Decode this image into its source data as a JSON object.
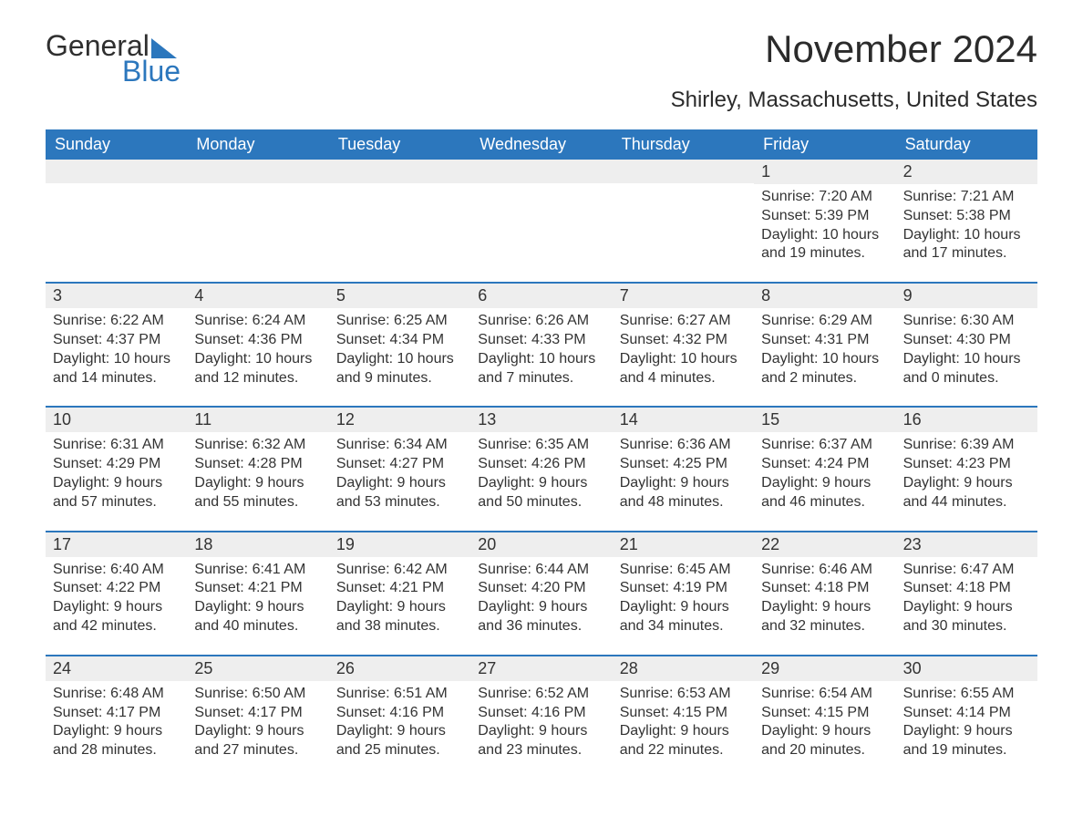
{
  "logo": {
    "line1": "General",
    "line2": "Blue",
    "triangle_color": "#2c77bd"
  },
  "title": "November 2024",
  "location": "Shirley, Massachusetts, United States",
  "colors": {
    "header_bg": "#2c77bd",
    "header_text": "#ffffff",
    "daynum_bg": "#eeeeee",
    "text": "#333333",
    "rule": "#2c77bd",
    "page_bg": "#ffffff"
  },
  "typography": {
    "title_fontsize": 42,
    "location_fontsize": 24,
    "dayheader_fontsize": 18,
    "daynum_fontsize": 18,
    "body_fontsize": 16,
    "logo_fontsize": 32
  },
  "layout": {
    "columns": 7,
    "rows": 5,
    "first_day_column": 5
  },
  "day_headers": [
    "Sunday",
    "Monday",
    "Tuesday",
    "Wednesday",
    "Thursday",
    "Friday",
    "Saturday"
  ],
  "days": [
    {
      "n": 1,
      "sunrise": "7:20 AM",
      "sunset": "5:39 PM",
      "daylight": "10 hours and 19 minutes."
    },
    {
      "n": 2,
      "sunrise": "7:21 AM",
      "sunset": "5:38 PM",
      "daylight": "10 hours and 17 minutes."
    },
    {
      "n": 3,
      "sunrise": "6:22 AM",
      "sunset": "4:37 PM",
      "daylight": "10 hours and 14 minutes."
    },
    {
      "n": 4,
      "sunrise": "6:24 AM",
      "sunset": "4:36 PM",
      "daylight": "10 hours and 12 minutes."
    },
    {
      "n": 5,
      "sunrise": "6:25 AM",
      "sunset": "4:34 PM",
      "daylight": "10 hours and 9 minutes."
    },
    {
      "n": 6,
      "sunrise": "6:26 AM",
      "sunset": "4:33 PM",
      "daylight": "10 hours and 7 minutes."
    },
    {
      "n": 7,
      "sunrise": "6:27 AM",
      "sunset": "4:32 PM",
      "daylight": "10 hours and 4 minutes."
    },
    {
      "n": 8,
      "sunrise": "6:29 AM",
      "sunset": "4:31 PM",
      "daylight": "10 hours and 2 minutes."
    },
    {
      "n": 9,
      "sunrise": "6:30 AM",
      "sunset": "4:30 PM",
      "daylight": "10 hours and 0 minutes."
    },
    {
      "n": 10,
      "sunrise": "6:31 AM",
      "sunset": "4:29 PM",
      "daylight": "9 hours and 57 minutes."
    },
    {
      "n": 11,
      "sunrise": "6:32 AM",
      "sunset": "4:28 PM",
      "daylight": "9 hours and 55 minutes."
    },
    {
      "n": 12,
      "sunrise": "6:34 AM",
      "sunset": "4:27 PM",
      "daylight": "9 hours and 53 minutes."
    },
    {
      "n": 13,
      "sunrise": "6:35 AM",
      "sunset": "4:26 PM",
      "daylight": "9 hours and 50 minutes."
    },
    {
      "n": 14,
      "sunrise": "6:36 AM",
      "sunset": "4:25 PM",
      "daylight": "9 hours and 48 minutes."
    },
    {
      "n": 15,
      "sunrise": "6:37 AM",
      "sunset": "4:24 PM",
      "daylight": "9 hours and 46 minutes."
    },
    {
      "n": 16,
      "sunrise": "6:39 AM",
      "sunset": "4:23 PM",
      "daylight": "9 hours and 44 minutes."
    },
    {
      "n": 17,
      "sunrise": "6:40 AM",
      "sunset": "4:22 PM",
      "daylight": "9 hours and 42 minutes."
    },
    {
      "n": 18,
      "sunrise": "6:41 AM",
      "sunset": "4:21 PM",
      "daylight": "9 hours and 40 minutes."
    },
    {
      "n": 19,
      "sunrise": "6:42 AM",
      "sunset": "4:21 PM",
      "daylight": "9 hours and 38 minutes."
    },
    {
      "n": 20,
      "sunrise": "6:44 AM",
      "sunset": "4:20 PM",
      "daylight": "9 hours and 36 minutes."
    },
    {
      "n": 21,
      "sunrise": "6:45 AM",
      "sunset": "4:19 PM",
      "daylight": "9 hours and 34 minutes."
    },
    {
      "n": 22,
      "sunrise": "6:46 AM",
      "sunset": "4:18 PM",
      "daylight": "9 hours and 32 minutes."
    },
    {
      "n": 23,
      "sunrise": "6:47 AM",
      "sunset": "4:18 PM",
      "daylight": "9 hours and 30 minutes."
    },
    {
      "n": 24,
      "sunrise": "6:48 AM",
      "sunset": "4:17 PM",
      "daylight": "9 hours and 28 minutes."
    },
    {
      "n": 25,
      "sunrise": "6:50 AM",
      "sunset": "4:17 PM",
      "daylight": "9 hours and 27 minutes."
    },
    {
      "n": 26,
      "sunrise": "6:51 AM",
      "sunset": "4:16 PM",
      "daylight": "9 hours and 25 minutes."
    },
    {
      "n": 27,
      "sunrise": "6:52 AM",
      "sunset": "4:16 PM",
      "daylight": "9 hours and 23 minutes."
    },
    {
      "n": 28,
      "sunrise": "6:53 AM",
      "sunset": "4:15 PM",
      "daylight": "9 hours and 22 minutes."
    },
    {
      "n": 29,
      "sunrise": "6:54 AM",
      "sunset": "4:15 PM",
      "daylight": "9 hours and 20 minutes."
    },
    {
      "n": 30,
      "sunrise": "6:55 AM",
      "sunset": "4:14 PM",
      "daylight": "9 hours and 19 minutes."
    }
  ],
  "labels": {
    "sunrise_prefix": "Sunrise: ",
    "sunset_prefix": "Sunset: ",
    "daylight_prefix": "Daylight: "
  }
}
